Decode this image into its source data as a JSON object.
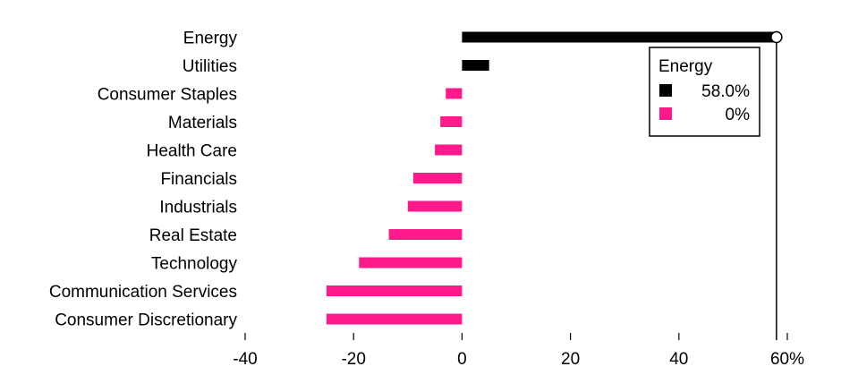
{
  "chart_data": {
    "type": "bar",
    "orientation": "horizontal",
    "categories": [
      "Energy",
      "Utilities",
      "Consumer Staples",
      "Materials",
      "Health Care",
      "Financials",
      "Industrials",
      "Real Estate",
      "Technology",
      "Communication Services",
      "Consumer Discretionary"
    ],
    "values": [
      58.0,
      5.0,
      -3.0,
      -4.0,
      -5.0,
      -9.0,
      -10.0,
      -13.5,
      -19.0,
      -25.0,
      -25.0
    ],
    "colors": {
      "positive": "#000000",
      "negative": "#ff1a8c"
    },
    "xlim": [
      -40,
      60
    ],
    "xticks": [
      {
        "value": -40,
        "label": "-40"
      },
      {
        "value": -20,
        "label": "-20"
      },
      {
        "value": 0,
        "label": "0"
      },
      {
        "value": 20,
        "label": "20"
      },
      {
        "value": 40,
        "label": "40"
      },
      {
        "value": 60,
        "label": "60%"
      }
    ],
    "grid": false,
    "highlight": {
      "category": "Energy",
      "value": 58.0
    },
    "legend": {
      "position": "top-right",
      "title": "Energy",
      "entries": [
        {
          "label": "58.0%",
          "color": "#000000"
        },
        {
          "label": "0%",
          "color": "#ff1a8c"
        }
      ]
    }
  }
}
